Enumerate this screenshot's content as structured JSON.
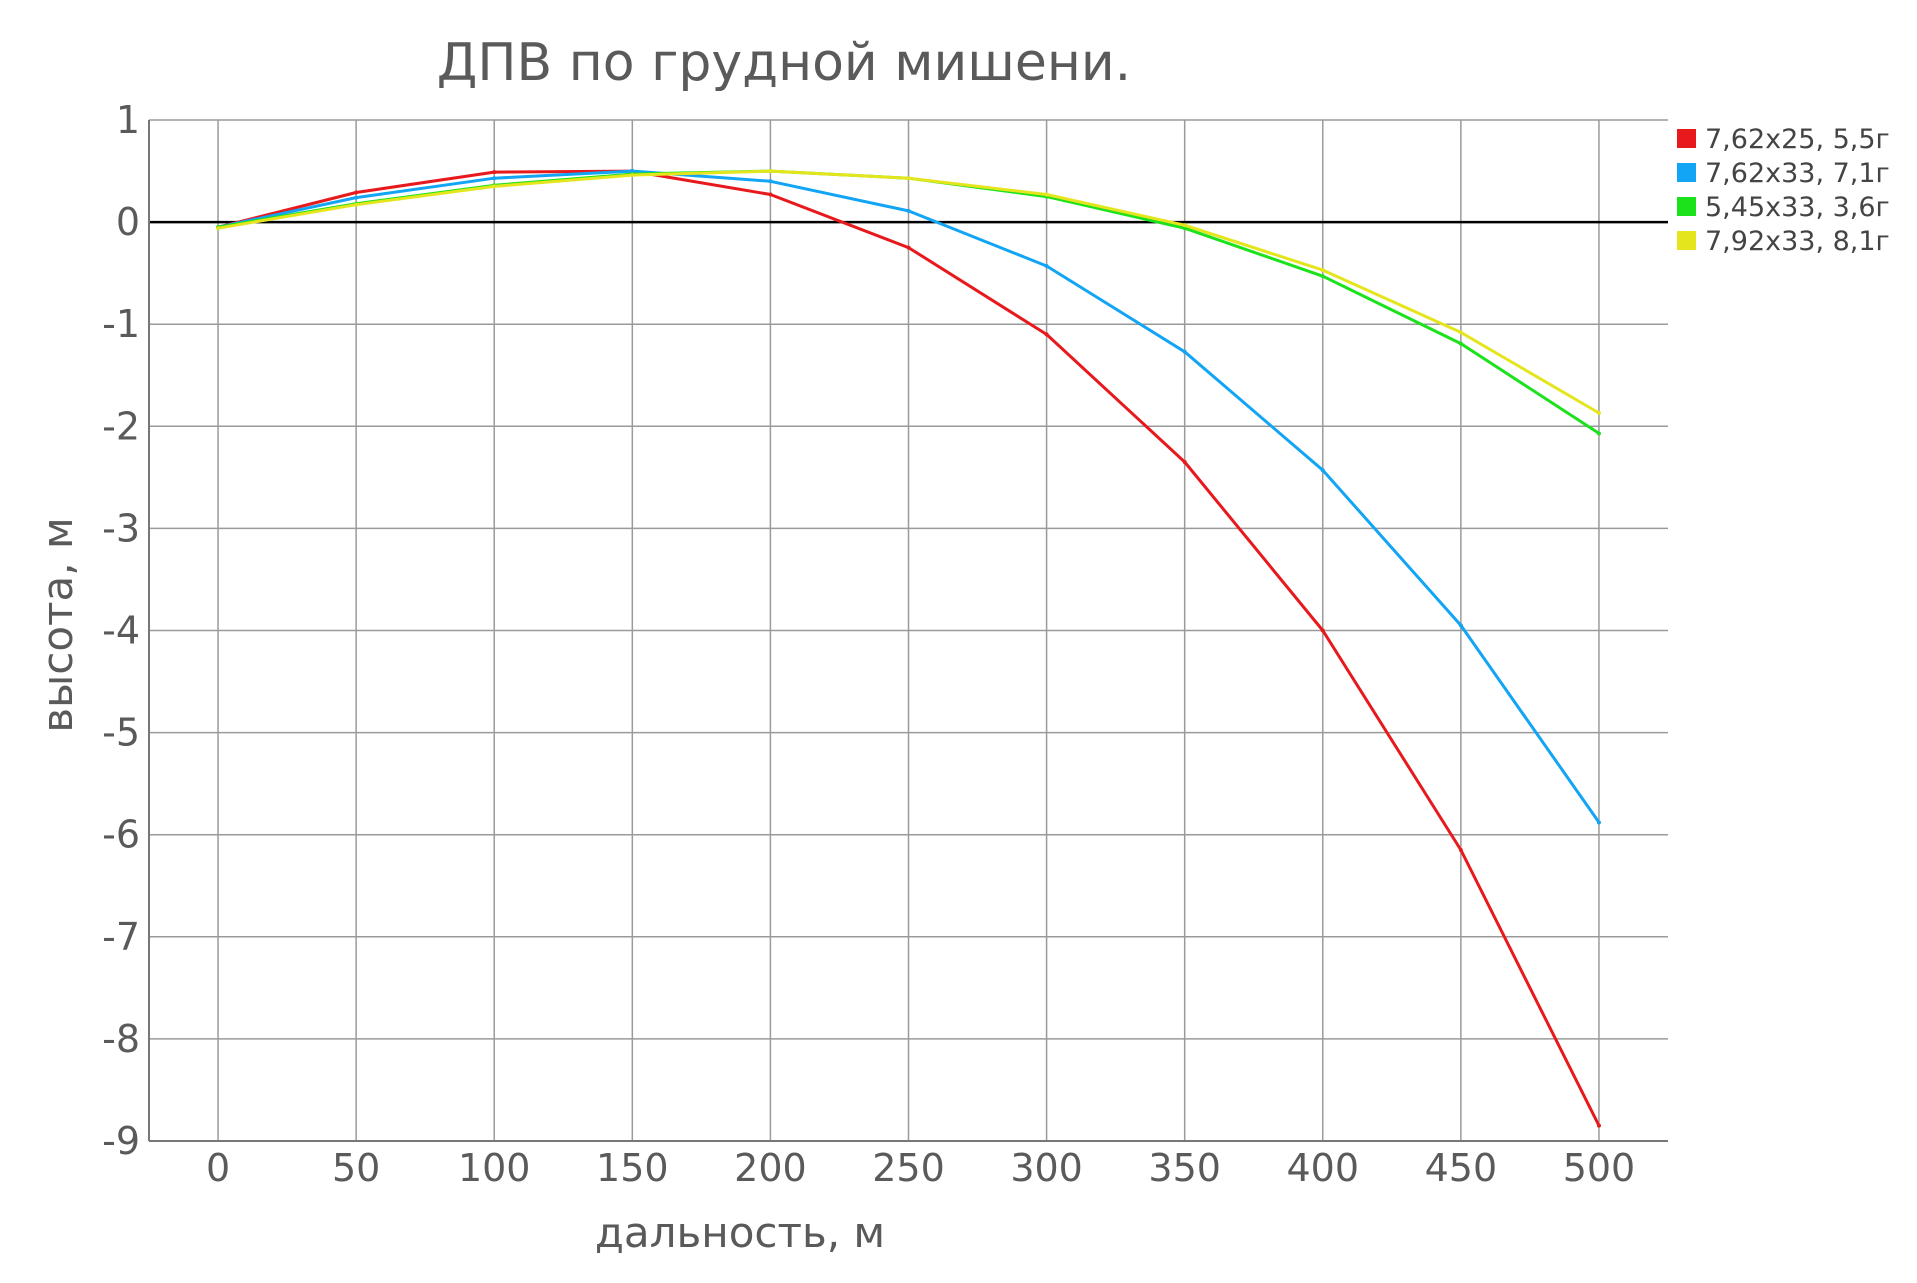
{
  "chart_data": {
    "type": "line",
    "title": "ДПВ по грудной мишени.",
    "xlabel": "дальность, м",
    "ylabel": "высота, м",
    "x": [
      0,
      50,
      100,
      150,
      200,
      250,
      300,
      350,
      400,
      450,
      500
    ],
    "x_tick_labels": [
      "0",
      "50",
      "100",
      "150",
      "200",
      "250",
      "300",
      "350",
      "400",
      "450",
      "500"
    ],
    "y_ticks": [
      1,
      0,
      -1,
      -2,
      -3,
      -4,
      -5,
      -6,
      -7,
      -8,
      -9
    ],
    "y_tick_labels": [
      "1",
      "0",
      "-1",
      "-2",
      "-3",
      "-4",
      "-5",
      "-6",
      "-7",
      "-8",
      "-9"
    ],
    "xlim": [
      -25,
      525
    ],
    "ylim": [
      -9,
      1
    ],
    "grid": true,
    "legend_position": "right",
    "series": [
      {
        "name": "7,62x25, 5,5г",
        "color": "#e8191d",
        "values": [
          -0.05,
          0.29,
          0.49,
          0.5,
          0.27,
          -0.25,
          -1.1,
          -2.35,
          -4.0,
          -6.15,
          -8.85
        ]
      },
      {
        "name": "7,62x33, 7,1г",
        "color": "#12a4f5",
        "values": [
          -0.05,
          0.24,
          0.43,
          0.5,
          0.4,
          0.11,
          -0.43,
          -1.27,
          -2.43,
          -3.95,
          -5.88
        ]
      },
      {
        "name": "5,45x33, 3,6г",
        "color": "#1ce21c",
        "values": [
          -0.05,
          0.18,
          0.36,
          0.47,
          0.5,
          0.43,
          0.25,
          -0.06,
          -0.53,
          -1.19,
          -2.07
        ]
      },
      {
        "name": "7,92x33, 8,1г",
        "color": "#e5e51d",
        "values": [
          -0.06,
          0.17,
          0.35,
          0.46,
          0.5,
          0.43,
          0.27,
          -0.03,
          -0.47,
          -1.08,
          -1.87
        ]
      }
    ]
  }
}
